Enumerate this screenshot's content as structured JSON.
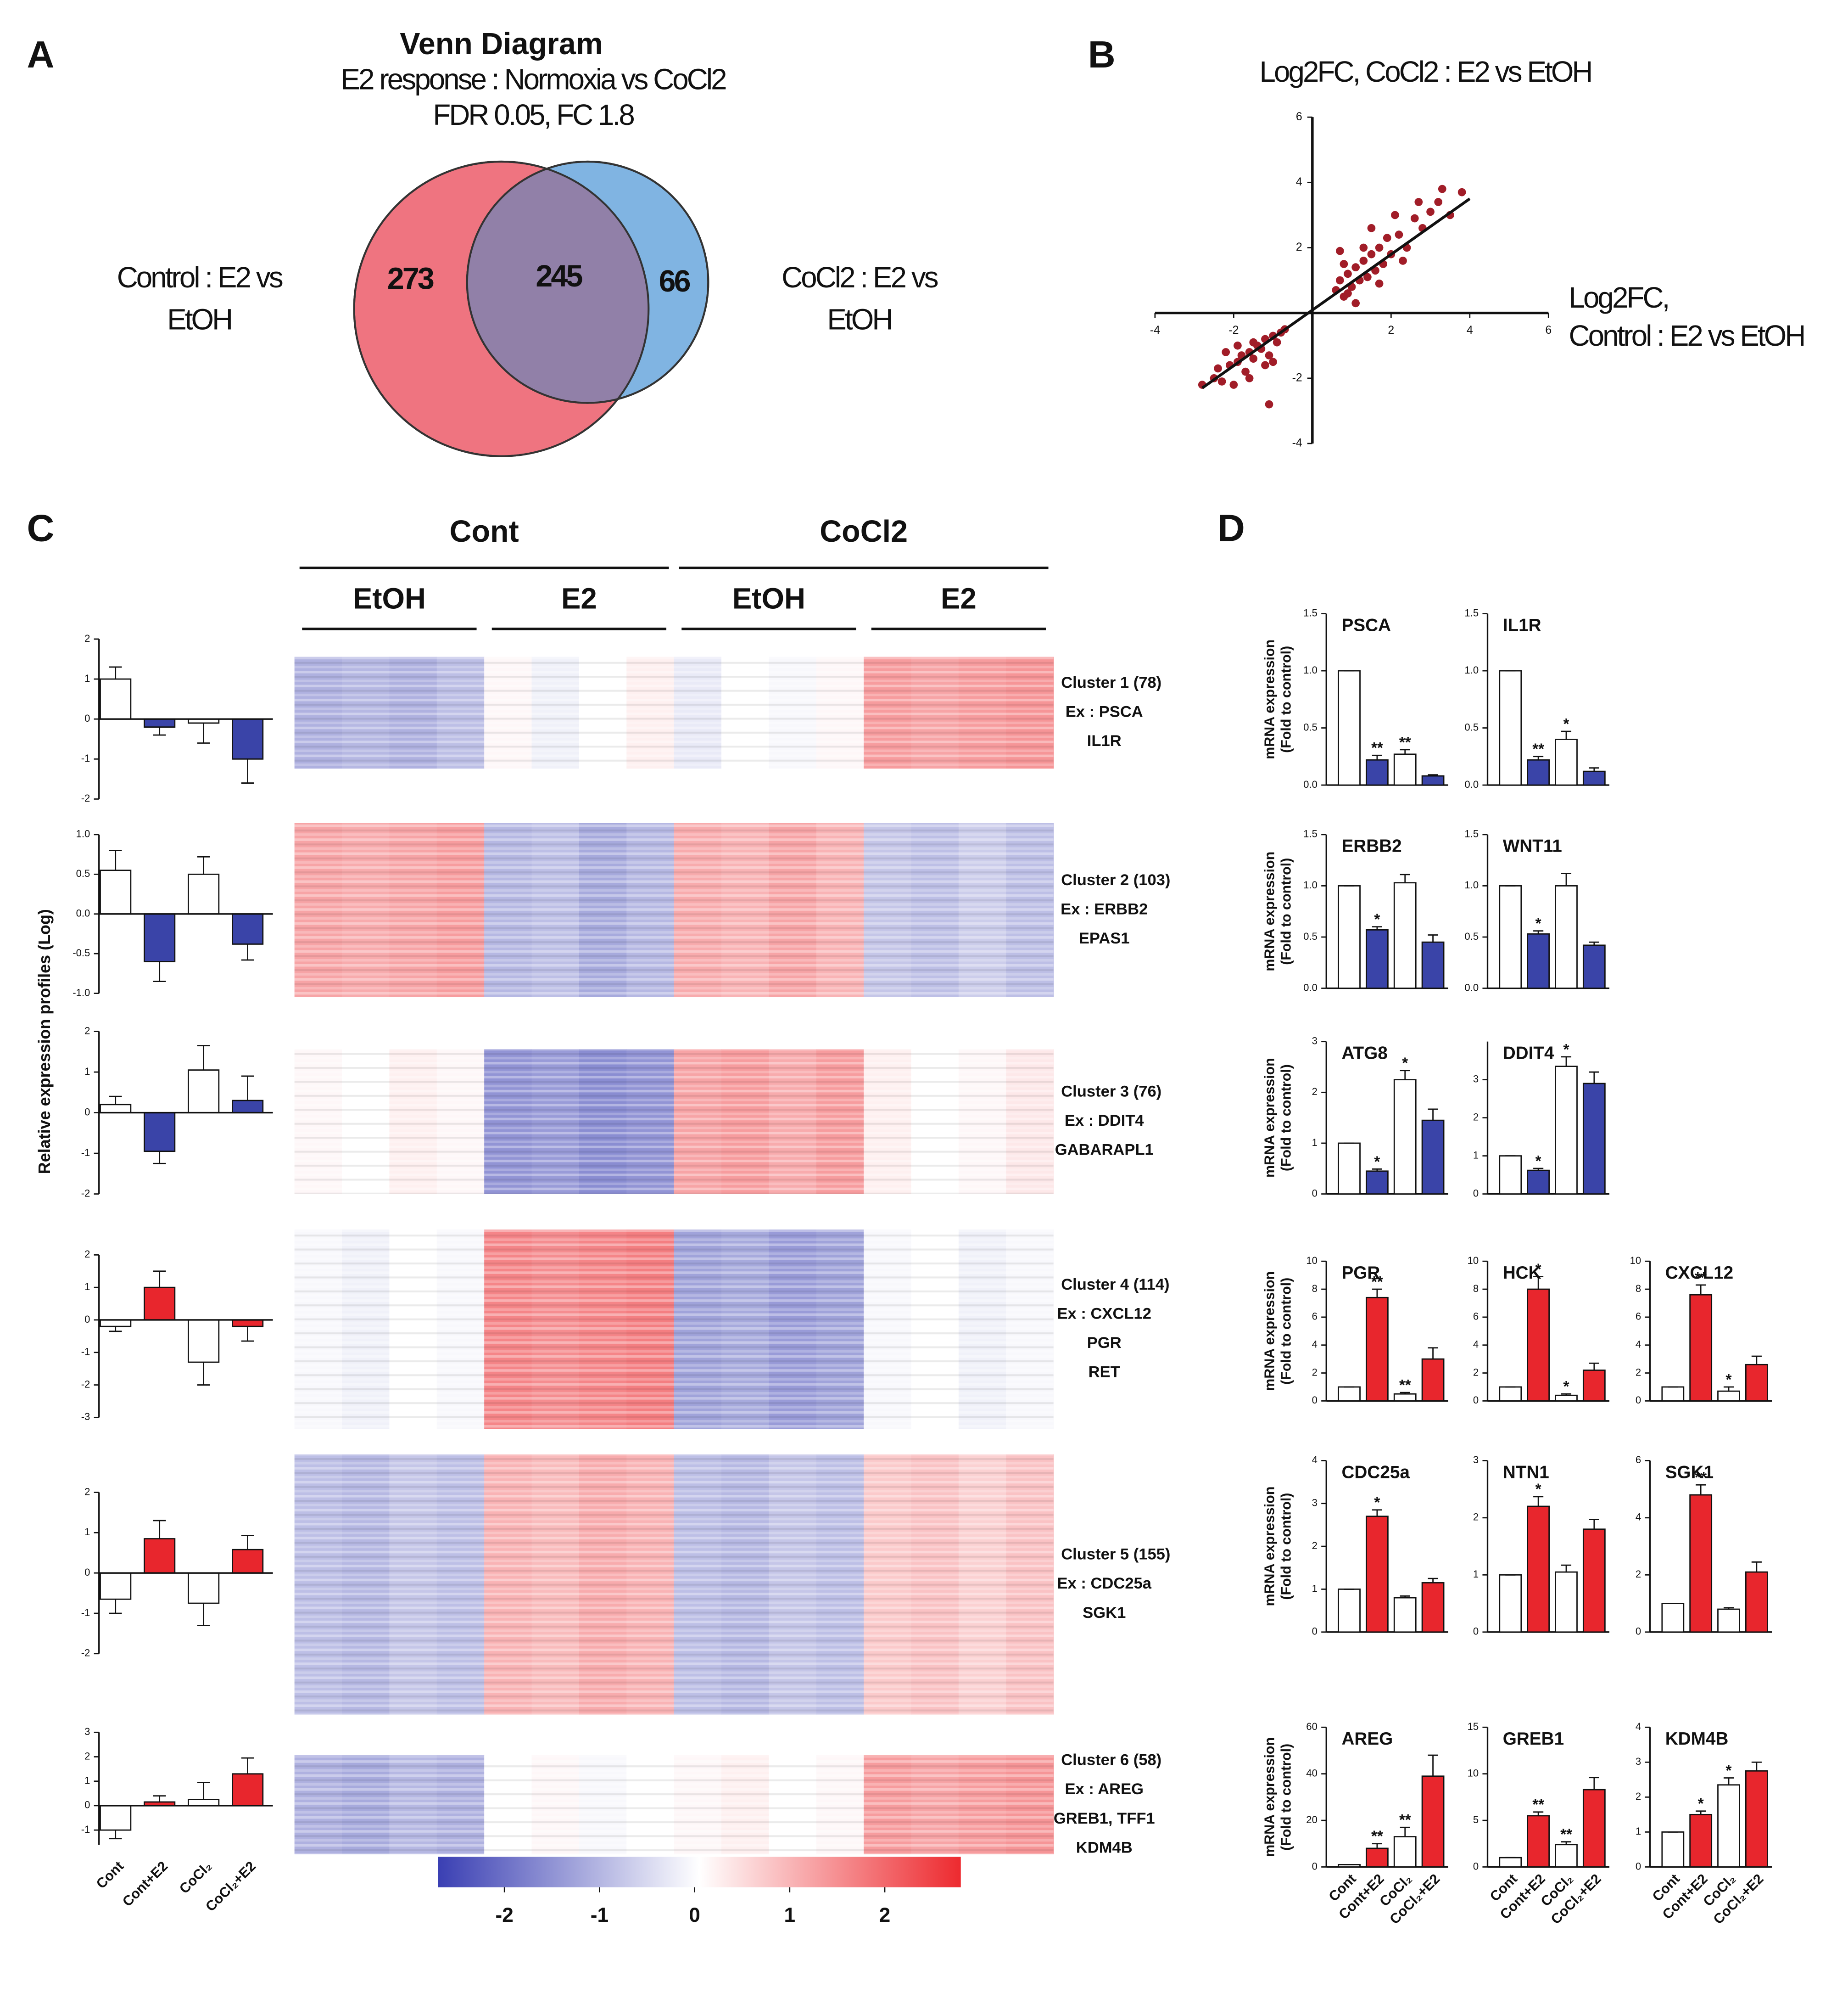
{
  "panel_labels": [
    "A",
    "B",
    "C",
    "D"
  ],
  "venn": {
    "title": "Venn Diagram",
    "subtitle": "E2 response : Normoxia vs CoCl2",
    "criteria": "FDR 0.05, FC 1.8",
    "sets": [
      {
        "name": [
          "Control : E2 vs",
          "EtOH"
        ],
        "only": 273,
        "color": "#ef7480"
      },
      {
        "name": [
          "CoCl2 : E2 vs",
          "EtOH"
        ],
        "only": 66,
        "color": "#80b4e2"
      }
    ],
    "both": 245,
    "both_color": "#9180a8"
  },
  "scatter": {
    "type": "scatter",
    "title": "Log2FC, CoCl2 : E2 vs EtOH",
    "xlabel": [
      "Log2FC,",
      "Control : E2 vs EtOH"
    ],
    "xlim": [
      -4,
      6
    ],
    "ylim": [
      -4,
      6
    ],
    "xticks": [
      -4,
      -2,
      2,
      4,
      6
    ],
    "yticks": [
      -4,
      -2,
      2,
      4,
      6
    ],
    "color": "#a11d28",
    "x": [
      -2.5,
      -2.3,
      -2.1,
      -2.0,
      -1.9,
      -1.8,
      -1.7,
      -1.6,
      -1.5,
      -1.4,
      -1.3,
      -1.2,
      -1.1,
      -1.0,
      -0.9,
      -0.8,
      -2.8,
      -2.2,
      -1.6,
      -1.2,
      -0.7,
      -1.9,
      -2.4,
      -1.5,
      -1.0,
      0.6,
      0.7,
      0.8,
      0.9,
      1.0,
      1.1,
      1.2,
      1.3,
      1.4,
      1.5,
      1.6,
      1.7,
      1.8,
      1.9,
      2.0,
      2.2,
      2.4,
      2.6,
      2.8,
      3.0,
      3.2,
      3.5,
      3.8,
      0.8,
      1.1,
      1.5,
      2.1,
      2.7,
      1.3,
      0.9,
      -1.1,
      2.3,
      3.3,
      1.7,
      0.7
    ],
    "y": [
      -2.0,
      -2.1,
      -1.6,
      -2.2,
      -1.5,
      -1.3,
      -1.8,
      -1.2,
      -1.4,
      -1.0,
      -1.1,
      -0.8,
      -1.3,
      -0.7,
      -0.9,
      -0.6,
      -2.2,
      -1.2,
      -2.0,
      -1.6,
      -0.5,
      -1.0,
      -1.7,
      -0.9,
      -1.5,
      0.7,
      1.0,
      0.5,
      1.2,
      0.8,
      1.4,
      1.0,
      1.6,
      1.1,
      1.8,
      1.3,
      2.0,
      1.5,
      2.3,
      1.8,
      2.4,
      2.0,
      2.9,
      2.6,
      3.1,
      3.4,
      3.0,
      3.7,
      1.5,
      0.3,
      2.6,
      3.0,
      3.4,
      2.0,
      0.6,
      -2.8,
      1.6,
      3.8,
      0.9,
      1.9
    ],
    "fit": {
      "x": [
        -2.8,
        4.0
      ],
      "y": [
        -2.3,
        3.5
      ]
    }
  },
  "heatmap": {
    "groups": [
      {
        "name": "Cont",
        "subgroups": [
          "EtOH",
          "E2"
        ]
      },
      {
        "name": "CoCl2",
        "subgroups": [
          "EtOH",
          "E2"
        ]
      }
    ],
    "ylabel": "Relative expression profiles (Log)",
    "categories": [
      "Cont",
      "Cont+E2",
      "CoCl₂",
      "CoCl₂+E2"
    ],
    "control_color": "#ffffff",
    "colorbar": {
      "clim": [
        -2.7,
        2.8
      ],
      "ticks": [
        -2,
        -1,
        0,
        1,
        2
      ],
      "colors": [
        "#3a3fb3",
        "#ffffff",
        "#ed2a2f"
      ]
    },
    "clusters": [
      {
        "label": [
          "Cluster 1 (78)",
          "Ex : PSCA",
          "IL1R"
        ],
        "columns": [
          -1.1,
          -1.0,
          -1.1,
          -0.9,
          0.1,
          -0.2,
          0.0,
          0.2,
          -0.3,
          0.0,
          -0.1,
          0.1,
          1.3,
          1.2,
          1.3,
          1.4
        ],
        "profile": {
          "ylim": [
            -2,
            2
          ],
          "yticks": [
            -2,
            -1,
            0,
            1,
            2
          ],
          "values": [
            1.0,
            -0.2,
            -0.1,
            -1.0
          ],
          "errors": [
            0.3,
            0.2,
            0.5,
            0.6
          ],
          "color": "#3a44a8"
        }
      },
      {
        "label": [
          "Cluster 2 (103)",
          "Ex : ERBB2",
          "EPAS1"
        ],
        "columns": [
          1.2,
          1.1,
          1.2,
          1.3,
          -1.0,
          -0.9,
          -1.2,
          -1.0,
          1.1,
          1.0,
          1.2,
          1.0,
          -0.8,
          -0.9,
          -0.7,
          -0.9
        ],
        "profile": {
          "ylim": [
            -1,
            1
          ],
          "yticks": [
            {
              "value": -1,
              "label": "-1.0"
            },
            -0.5,
            {
              "value": 0,
              "label": "0.0"
            },
            0.5,
            {
              "value": 1,
              "label": "1.0"
            }
          ],
          "values": [
            0.55,
            -0.6,
            0.5,
            -0.38
          ],
          "errors": [
            0.25,
            0.25,
            0.22,
            0.2
          ],
          "color": "#3a44a8"
        }
      },
      {
        "label": [
          "Cluster 3 (76)",
          "Ex : DDIT4",
          "GABARAPL1"
        ],
        "columns": [
          0.1,
          0.0,
          0.2,
          0.1,
          -1.5,
          -1.4,
          -1.6,
          -1.5,
          1.2,
          1.3,
          1.1,
          1.3,
          0.2,
          0.0,
          0.1,
          0.3
        ],
        "profile": {
          "ylim": [
            -2,
            2
          ],
          "yticks": [
            -2,
            -1,
            0,
            1,
            2
          ],
          "values": [
            0.2,
            -0.95,
            1.05,
            0.3
          ],
          "errors": [
            0.2,
            0.3,
            0.6,
            0.6
          ],
          "color": "#3a44a8"
        }
      },
      {
        "label": [
          "Cluster 4 (114)",
          "Ex : CXCL12",
          "PGR",
          "RET"
        ],
        "columns": [
          -0.1,
          -0.2,
          0.0,
          -0.1,
          1.6,
          1.5,
          1.6,
          1.7,
          -1.3,
          -1.2,
          -1.4,
          -1.3,
          -0.1,
          0.0,
          -0.2,
          -0.1
        ],
        "profile": {
          "ylim": [
            -3,
            2
          ],
          "yticks": [
            -3,
            -2,
            -1,
            0,
            1,
            2
          ],
          "values": [
            -0.2,
            1.0,
            -1.3,
            -0.2
          ],
          "errors": [
            0.15,
            0.5,
            0.7,
            0.45
          ],
          "color": "#e8262d"
        }
      },
      {
        "label": [
          "Cluster 5 (155)",
          "Ex : CDC25a",
          "SGK1"
        ],
        "columns": [
          -0.9,
          -1.0,
          -0.8,
          -0.9,
          1.0,
          0.9,
          1.1,
          1.0,
          -0.9,
          -1.0,
          -0.8,
          -0.9,
          0.7,
          0.8,
          0.6,
          0.8
        ],
        "profile": {
          "ylim": [
            -2,
            2
          ],
          "yticks": [
            -2,
            -1,
            0,
            1,
            2
          ],
          "values": [
            -0.65,
            0.85,
            -0.75,
            0.58
          ],
          "errors": [
            0.35,
            0.45,
            0.55,
            0.35
          ],
          "color": "#e8262d"
        }
      },
      {
        "label": [
          "Cluster 6 (58)",
          "Ex : AREG",
          "GREB1, TFF1",
          "KDM4B"
        ],
        "columns": [
          -1.1,
          -1.2,
          -1.0,
          -1.1,
          0.0,
          0.1,
          -0.1,
          0.0,
          0.1,
          0.2,
          0.0,
          0.1,
          1.3,
          1.2,
          1.3,
          1.4
        ],
        "profile": {
          "ylim": [
            -1.6,
            3
          ],
          "yticks": [
            -1,
            0,
            1,
            2,
            3
          ],
          "values": [
            -1.0,
            0.15,
            0.25,
            1.3
          ],
          "errors": [
            0.35,
            0.25,
            0.7,
            0.65
          ],
          "color": "#e8262d"
        }
      }
    ]
  },
  "qpcr": {
    "ylabel": [
      "mRNA expression",
      "(Fold to control)"
    ],
    "categories": [
      "Cont",
      "Cont+E2",
      "CoCl₂",
      "CoCl₂+E2"
    ],
    "control_color": "#ffffff",
    "charts": [
      {
        "title": "PSCA",
        "ylim": [
          0,
          1.5
        ],
        "yticks": [
          {
            "value": 0,
            "label": "0.0"
          },
          0.5,
          {
            "value": 1,
            "label": "1.0"
          },
          1.5
        ],
        "values": [
          1.0,
          0.22,
          0.27,
          0.08
        ],
        "errors": [
          0,
          0.04,
          0.04,
          0.01
        ],
        "stars": [
          null,
          "**",
          "**",
          null
        ],
        "color": "#3a44a8"
      },
      {
        "title": "IL1R",
        "ylim": [
          0,
          1.5
        ],
        "yticks": [
          {
            "value": 0,
            "label": "0.0"
          },
          0.5,
          {
            "value": 1,
            "label": "1.0"
          },
          1.5
        ],
        "values": [
          1.0,
          0.22,
          0.4,
          0.12
        ],
        "errors": [
          0,
          0.03,
          0.07,
          0.03
        ],
        "stars": [
          null,
          "**",
          "*",
          null
        ],
        "color": "#3a44a8"
      },
      {
        "title": "ERBB2",
        "ylim": [
          0,
          1.5
        ],
        "yticks": [
          {
            "value": 0,
            "label": "0.0"
          },
          0.5,
          {
            "value": 1,
            "label": "1.0"
          },
          1.5
        ],
        "values": [
          1.0,
          0.57,
          1.03,
          0.45
        ],
        "errors": [
          0,
          0.03,
          0.08,
          0.07
        ],
        "stars": [
          null,
          "*",
          null,
          null
        ],
        "color": "#3a44a8"
      },
      {
        "title": "WNT11",
        "ylim": [
          0,
          1.5
        ],
        "yticks": [
          {
            "value": 0,
            "label": "0.0"
          },
          0.5,
          {
            "value": 1,
            "label": "1.0"
          },
          1.5
        ],
        "values": [
          1.0,
          0.53,
          1.0,
          0.42
        ],
        "errors": [
          0,
          0.03,
          0.12,
          0.03
        ],
        "stars": [
          null,
          "*",
          null,
          null
        ],
        "color": "#3a44a8"
      },
      {
        "title": "ATG8",
        "ylim": [
          0,
          3
        ],
        "yticks": [
          0,
          1,
          2,
          3
        ],
        "values": [
          1.0,
          0.45,
          2.25,
          1.45
        ],
        "errors": [
          0,
          0.04,
          0.18,
          0.22
        ],
        "stars": [
          null,
          "*",
          "*",
          null
        ],
        "color": "#3a44a8"
      },
      {
        "title": "DDIT4",
        "ylim": [
          0,
          4
        ],
        "yticks": [
          0,
          1,
          2,
          3
        ],
        "values": [
          1.0,
          0.62,
          3.35,
          2.9
        ],
        "errors": [
          0,
          0.05,
          0.25,
          0.3
        ],
        "stars": [
          null,
          "*",
          "*",
          null
        ],
        "color": "#3a44a8"
      },
      {
        "title": "PGR",
        "ylim": [
          0,
          10
        ],
        "yticks": [
          0,
          2,
          4,
          6,
          8,
          10
        ],
        "values": [
          1.0,
          7.4,
          0.5,
          3.0
        ],
        "errors": [
          0,
          0.6,
          0.1,
          0.8
        ],
        "stars": [
          null,
          "**",
          "**",
          null
        ],
        "color": "#e8262d"
      },
      {
        "title": "HCK",
        "ylim": [
          0,
          10
        ],
        "yticks": [
          0,
          2,
          4,
          6,
          8,
          10
        ],
        "values": [
          1.0,
          8.0,
          0.4,
          2.2
        ],
        "errors": [
          0,
          0.9,
          0.1,
          0.5
        ],
        "stars": [
          null,
          "*",
          "*",
          null
        ],
        "color": "#e8262d"
      },
      {
        "title": "CXCL12",
        "ylim": [
          0,
          10
        ],
        "yticks": [
          0,
          2,
          4,
          6,
          8,
          10
        ],
        "values": [
          1.0,
          7.6,
          0.7,
          2.6
        ],
        "errors": [
          0,
          0.7,
          0.3,
          0.6
        ],
        "stars": [
          null,
          "**",
          "*",
          null
        ],
        "color": "#e8262d"
      },
      {
        "title": "CDC25a",
        "ylim": [
          0,
          4
        ],
        "yticks": [
          0,
          1,
          2,
          3,
          4
        ],
        "values": [
          1.0,
          2.7,
          0.8,
          1.15
        ],
        "errors": [
          0,
          0.15,
          0.04,
          0.1
        ],
        "stars": [
          null,
          "*",
          null,
          null
        ],
        "color": "#e8262d"
      },
      {
        "title": "NTN1",
        "ylim": [
          0,
          3
        ],
        "yticks": [
          0,
          1,
          2,
          3
        ],
        "values": [
          1.0,
          2.2,
          1.05,
          1.8
        ],
        "errors": [
          0,
          0.17,
          0.12,
          0.17
        ],
        "stars": [
          null,
          "*",
          null,
          null
        ],
        "color": "#e8262d"
      },
      {
        "title": "SGK1",
        "ylim": [
          0,
          6
        ],
        "yticks": [
          0,
          2,
          4,
          6
        ],
        "values": [
          1.0,
          4.8,
          0.8,
          2.1
        ],
        "errors": [
          0,
          0.35,
          0.05,
          0.35
        ],
        "stars": [
          null,
          "**",
          null,
          null
        ],
        "color": "#e8262d"
      },
      {
        "title": "AREG",
        "ylim": [
          0,
          60
        ],
        "yticks": [
          0,
          20,
          40,
          60
        ],
        "values": [
          1,
          8,
          13,
          39
        ],
        "errors": [
          0,
          2,
          4,
          9
        ],
        "stars": [
          null,
          "**",
          "**",
          null
        ],
        "color": "#e8262d"
      },
      {
        "title": "GREB1",
        "ylim": [
          0,
          15
        ],
        "yticks": [
          0,
          5,
          10,
          15
        ],
        "values": [
          1,
          5.5,
          2.4,
          8.3
        ],
        "errors": [
          0,
          0.4,
          0.3,
          1.3
        ],
        "stars": [
          null,
          "**",
          "**",
          null
        ],
        "color": "#e8262d"
      },
      {
        "title": "KDM4B",
        "ylim": [
          0,
          4
        ],
        "yticks": [
          0,
          1,
          2,
          3,
          4
        ],
        "values": [
          1,
          1.5,
          2.35,
          2.75
        ],
        "errors": [
          0,
          0.1,
          0.2,
          0.25
        ],
        "stars": [
          null,
          "*",
          "*",
          null
        ],
        "color": "#e8262d"
      }
    ]
  }
}
